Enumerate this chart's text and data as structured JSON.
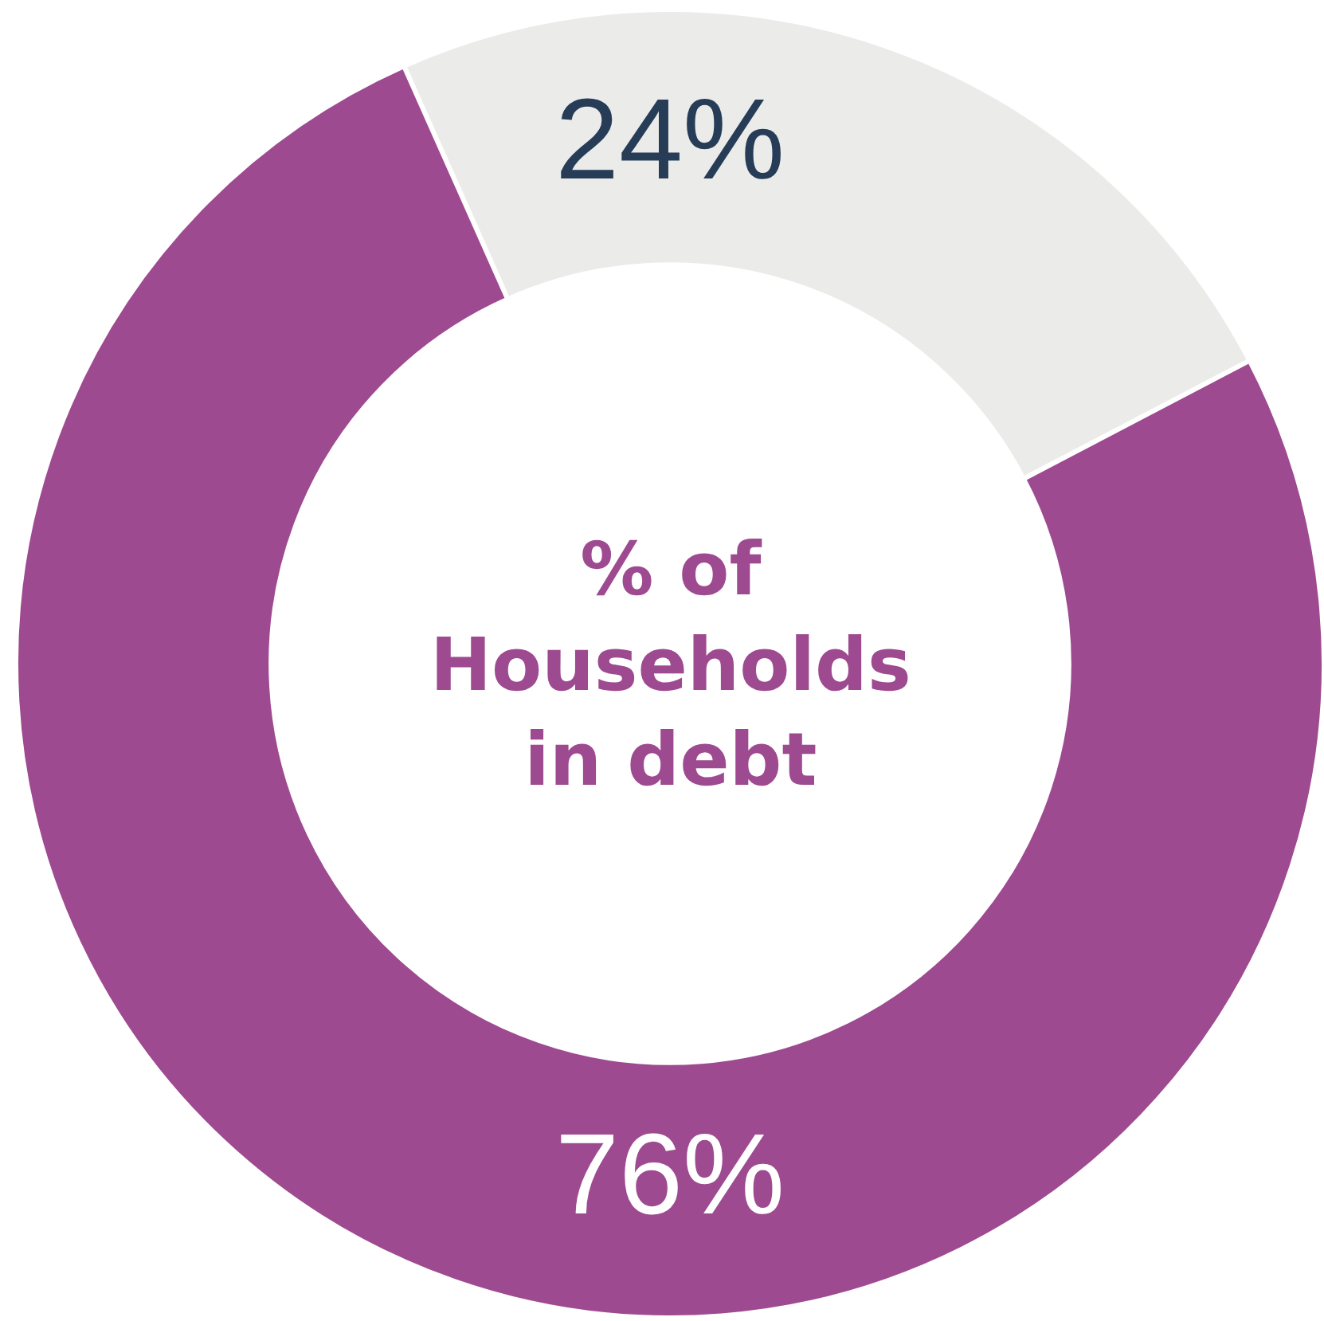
{
  "chart_data": {
    "type": "donut",
    "categories": [
      null,
      null
    ],
    "values": [
      24,
      76
    ],
    "colors": [
      "#ebebea",
      "#9e4a90"
    ],
    "value_labels": [
      "24%",
      "76%"
    ],
    "annotations": [
      "% of\nHouseholds\nin debt"
    ],
    "legend": false
  }
}
